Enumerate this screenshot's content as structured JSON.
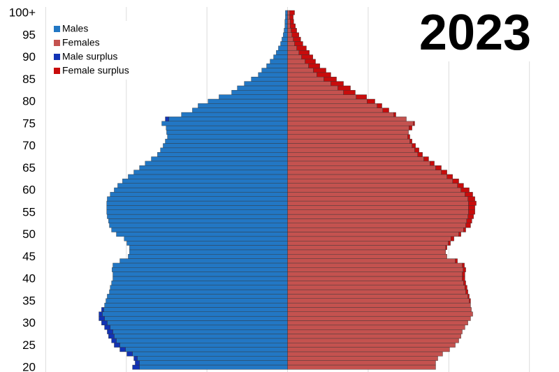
{
  "chart_data": {
    "type": "pyramid",
    "title": "2023",
    "categories": [
      "20",
      null,
      null,
      null,
      null,
      "25",
      null,
      null,
      null,
      null,
      "30",
      null,
      null,
      null,
      null,
      "35",
      null,
      null,
      null,
      null,
      "40",
      null,
      null,
      null,
      null,
      "45",
      null,
      null,
      null,
      null,
      "50",
      null,
      null,
      null,
      null,
      "55",
      null,
      null,
      null,
      null,
      "60",
      null,
      null,
      null,
      null,
      "65",
      null,
      null,
      null,
      null,
      "70",
      null,
      null,
      null,
      null,
      "75",
      null,
      null,
      null,
      null,
      "80",
      null,
      null,
      null,
      null,
      "85",
      null,
      null,
      null,
      null,
      "90",
      null,
      null,
      null,
      null,
      "95",
      null,
      null,
      null,
      null,
      "100+"
    ],
    "series": [
      {
        "name": "Males",
        "color": "#2277c4",
        "side": "left",
        "values": [
          551,
          551,
          559,
          577,
          603,
          624,
          637,
          645,
          650,
          660,
          671,
          681,
          689,
          684,
          681,
          676,
          671,
          663,
          660,
          655,
          650,
          650,
          653,
          650,
          624,
          593,
          588,
          588,
          598,
          608,
          637,
          655,
          663,
          666,
          671,
          673,
          673,
          673,
          671,
          660,
          645,
          632,
          614,
          593,
          572,
          551,
          530,
          507,
          484,
          473,
          463,
          455,
          447,
          450,
          452,
          468,
          442,
          395,
          354,
          333,
          296,
          255,
          208,
          187,
          161,
          135,
          109,
          96,
          78,
          65,
          52,
          42,
          34,
          26,
          21,
          16,
          13,
          10,
          10,
          8,
          8
        ]
      },
      {
        "name": "Females",
        "color": "#c4524f",
        "side": "right",
        "values": [
          551,
          551,
          559,
          577,
          603,
          624,
          637,
          645,
          650,
          660,
          671,
          681,
          689,
          684,
          681,
          676,
          671,
          663,
          660,
          655,
          650,
          650,
          653,
          650,
          624,
          593,
          588,
          588,
          598,
          608,
          637,
          655,
          663,
          666,
          671,
          673,
          673,
          673,
          671,
          660,
          645,
          632,
          614,
          593,
          572,
          551,
          530,
          507,
          484,
          473,
          463,
          455,
          447,
          450,
          452,
          468,
          442,
          395,
          354,
          333,
          296,
          255,
          208,
          187,
          161,
          135,
          109,
          96,
          78,
          65,
          52,
          42,
          34,
          26,
          21,
          16,
          13,
          10,
          10,
          8,
          8
        ]
      },
      {
        "name": "Male surplus",
        "color": "#1233b5",
        "side": "left",
        "values": [
          26,
          16,
          13,
          21,
          21,
          21,
          18,
          21,
          21,
          21,
          21,
          21,
          13,
          8,
          0,
          0,
          0,
          0,
          0,
          0,
          0,
          0,
          0,
          0,
          0,
          0,
          0,
          0,
          0,
          0,
          0,
          0,
          0,
          0,
          0,
          0,
          0,
          0,
          0,
          0,
          0,
          0,
          0,
          0,
          0,
          0,
          0,
          0,
          0,
          0,
          0,
          0,
          0,
          0,
          0,
          0,
          13,
          0,
          0,
          0,
          0,
          0,
          0,
          0,
          0,
          0,
          0,
          0,
          0,
          0,
          0,
          0,
          0,
          0,
          0,
          0,
          0,
          0,
          0,
          0,
          0
        ]
      },
      {
        "name": "Female surplus",
        "color": "#c80c0c",
        "side": "right",
        "values": [
          0,
          0,
          0,
          0,
          0,
          0,
          0,
          0,
          0,
          0,
          0,
          0,
          0,
          0,
          0,
          5,
          5,
          8,
          8,
          8,
          10,
          10,
          10,
          8,
          8,
          0,
          0,
          5,
          8,
          11,
          8,
          8,
          18,
          20,
          21,
          24,
          24,
          29,
          26,
          29,
          31,
          23,
          23,
          21,
          21,
          21,
          16,
          18,
          18,
          16,
          13,
          8,
          8,
          0,
          11,
          5,
          0,
          8,
          23,
          18,
          29,
          39,
          44,
          47,
          47,
          47,
          52,
          47,
          42,
          39,
          42,
          39,
          36,
          31,
          28,
          26,
          21,
          19,
          13,
          13,
          18
        ]
      }
    ],
    "xlim": [
      -1070,
      1010
    ],
    "xticks": [
      -900,
      -600,
      -300,
      0,
      300,
      600,
      900
    ],
    "grid": true,
    "legend": "upper left"
  }
}
